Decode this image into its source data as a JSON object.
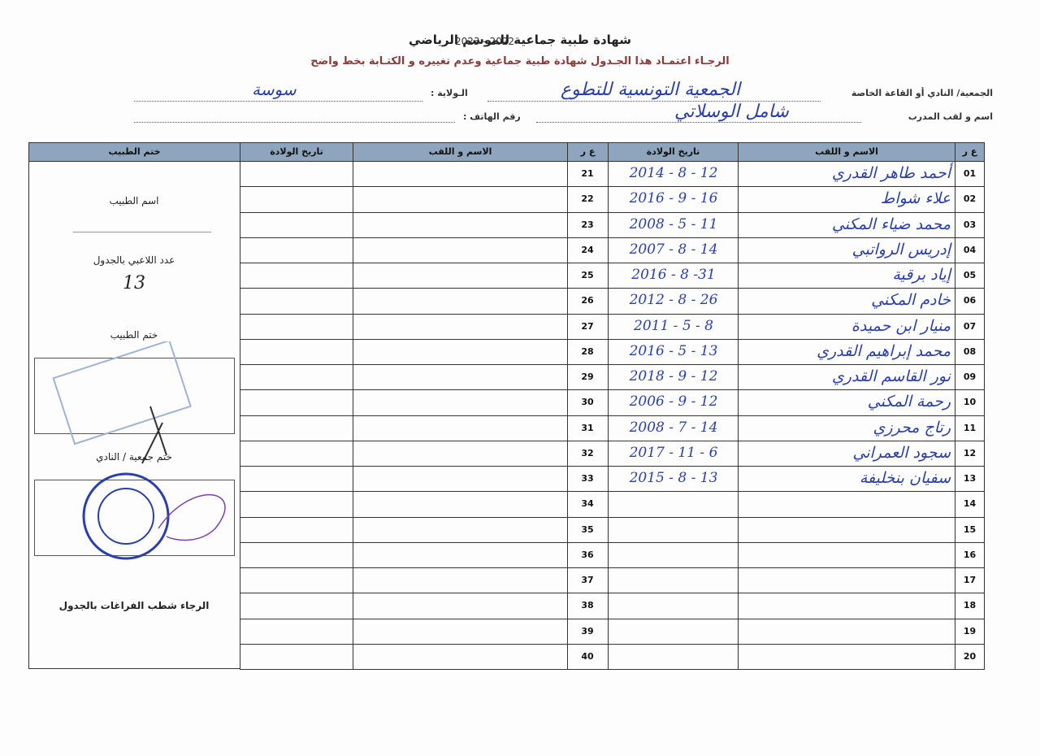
{
  "header": {
    "title": "شهادة طبية جماعية  للموسم الرياضي",
    "season": "2023 - 2022",
    "instruction": "الرجـاء اعتمـاد هذا الجـدول  شهادة طبية جماعية وعدم تغييره و الكتـابة بخط واضح"
  },
  "fields": {
    "club_label": "الجمعية/ النادي أو القاعة الخاصة",
    "club_value": "الجمعية التونسية للتطوع",
    "state_label": "الـولاية :",
    "state_value": "سوسة",
    "coach_label": "اسم و لقب المدرب",
    "coach_value": "شامل الوسلاتي",
    "phone_label": "رقم الهاتف :"
  },
  "table": {
    "headers": {
      "no": "ع ر",
      "name": "الاسم و اللقب",
      "birth": "تاريخ الولادة",
      "no2": "ع ر",
      "name2": "الاسم و اللقب",
      "birth2": "تاريخ الولادة",
      "stamp": "ختم الطبيب"
    },
    "rows": [
      {
        "no": "01",
        "name": "أحمد طاهر القدري",
        "birth": "2014 - 8 - 12"
      },
      {
        "no": "02",
        "name": "علاء شواط",
        "birth": "2016 - 9 - 16"
      },
      {
        "no": "03",
        "name": "محمد ضياء المكني",
        "birth": "2008 - 5 - 11"
      },
      {
        "no": "04",
        "name": "إدريس الرواتبي",
        "birth": "2007 - 8 - 14"
      },
      {
        "no": "05",
        "name": "إياد برقية",
        "birth": "2016 - 8 -31"
      },
      {
        "no": "06",
        "name": "خادم المكني",
        "birth": "2012 - 8 - 26"
      },
      {
        "no": "07",
        "name": "منيار ابن حميدة",
        "birth": "2011 - 5 - 8"
      },
      {
        "no": "08",
        "name": "محمد إبراهيم القدري",
        "birth": "2016 - 5 - 13"
      },
      {
        "no": "09",
        "name": "نور القاسم القدري",
        "birth": "2018 - 9 - 12"
      },
      {
        "no": "10",
        "name": "رحمة المكني",
        "birth": "2006 - 9 - 12"
      },
      {
        "no": "11",
        "name": "رتاج محرزي",
        "birth": "2008 - 7 - 14"
      },
      {
        "no": "12",
        "name": "سجود العمراني",
        "birth": "2017 - 11 - 6"
      },
      {
        "no": "13",
        "name": "سفيان بنخليفة",
        "birth": "2015 - 8 - 13"
      },
      {
        "no": "14"
      },
      {
        "no": "15"
      },
      {
        "no": "16"
      },
      {
        "no": "17"
      },
      {
        "no": "18"
      },
      {
        "no": "19"
      },
      {
        "no": "20"
      }
    ],
    "rows2": [
      "21",
      "22",
      "23",
      "24",
      "25",
      "26",
      "27",
      "28",
      "29",
      "30",
      "31",
      "32",
      "33",
      "34",
      "35",
      "36",
      "37",
      "38",
      "39",
      "40"
    ]
  },
  "doctor_panel": {
    "doctor_name": "اسم الطبيب",
    "player_count_label": "عدد اللاعبي بالجدول",
    "player_count": 13,
    "doctor_stamp": "ختم الطبيب",
    "club_stamp": "ختم جمعية / النادي",
    "note": "الرجاء شطب  الفراغات بالجدول"
  }
}
